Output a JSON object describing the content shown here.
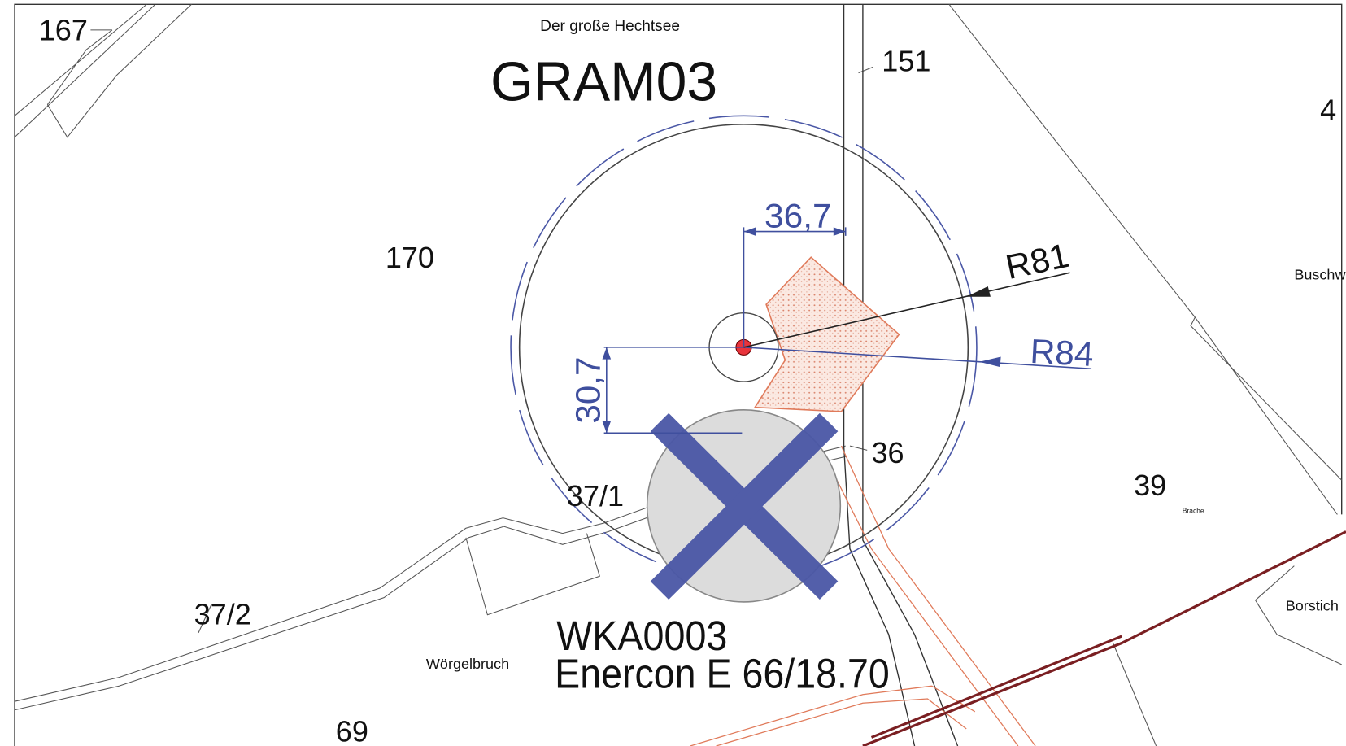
{
  "header": {
    "location": "Der große Hechtsee",
    "site": "GRAM03"
  },
  "parcels": [
    "167",
    "151",
    "4",
    "170",
    "36",
    "37/1",
    "39",
    "37/2",
    "69"
  ],
  "dimensions": {
    "horizontal": "36,7",
    "vertical": "30,7",
    "radius_outer": "R81",
    "radius_blue": "R84"
  },
  "place_names": [
    "Buschw",
    "Brache",
    "Wörgelbruch",
    "Borstich"
  ],
  "turbine": {
    "id": "WKA0003",
    "model": "Enercon E 66/18.70"
  }
}
